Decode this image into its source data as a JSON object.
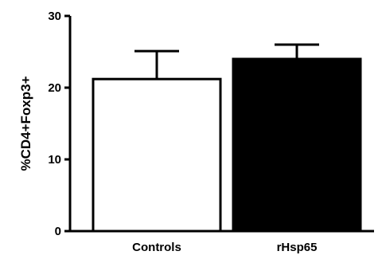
{
  "chart_data": {
    "type": "bar",
    "title": "",
    "xlabel": "",
    "ylabel": "%CD4+Foxp3+",
    "ylim": [
      0,
      30
    ],
    "yticks": [
      0,
      10,
      20,
      30
    ],
    "categories": [
      "Controls",
      "rHsp65"
    ],
    "values": [
      21.2,
      24.0
    ],
    "errors_upper": [
      3.9,
      2.0
    ],
    "bar_fills": [
      "#ffffff",
      "#000000"
    ],
    "bar_stroke": "#000000",
    "grid": false,
    "legend": "none"
  }
}
